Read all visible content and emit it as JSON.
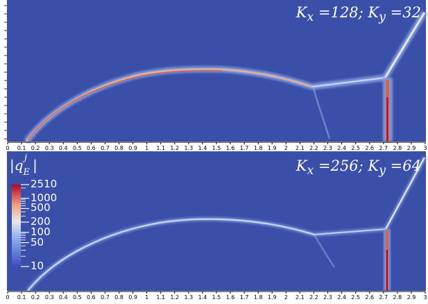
{
  "panels": [
    {
      "title_html": "K<sub>x</sub> =128; K<sub>y</sub> =32",
      "title": "Kx =128; Ky =32",
      "x_ticks": [
        "0",
        "0.1",
        "0.2",
        "0.3",
        "0.4",
        "0.5",
        "0.6",
        "0.7",
        "0.8",
        "0.9",
        "1",
        "1.1",
        "1.2",
        "1.3",
        "1.4",
        "1.5",
        "1.6",
        "1.7",
        "1.8",
        "1.9",
        "2",
        "2.1",
        "2.2",
        "2.3",
        "2.4",
        "2.5",
        "2.6",
        "2.7",
        "2.8",
        "2.9",
        "3"
      ]
    },
    {
      "title_html": "K<sub>x</sub> =256; K<sub>y</sub> =64",
      "title": "Kx =256; Ky =64",
      "x_ticks": [
        "0",
        "0.1",
        "0.2",
        "0.3",
        "0.4",
        "0.5",
        "0.6",
        "0.7",
        "0.8",
        "0.9",
        "1",
        "1.1",
        "1.2",
        "1.3",
        "1.4",
        "1.5",
        "1.6",
        "1.7",
        "1.8",
        "1.9",
        "2",
        "2.1",
        "2.2",
        "2.3",
        "2.4",
        "2.5",
        "2.6",
        "2.7",
        "2.8",
        "2.9",
        "3"
      ]
    }
  ],
  "colorbar": {
    "title": "|q_E^j|",
    "labels": [
      "2510",
      "1000",
      "500",
      "200",
      "100",
      "50",
      "10"
    ],
    "scale": "log",
    "range": [
      10,
      2510
    ]
  },
  "colors": {
    "background": "#3a4fa8",
    "low": "#3b4cc0",
    "mid": "#dddddd",
    "high": "#b40426"
  }
}
